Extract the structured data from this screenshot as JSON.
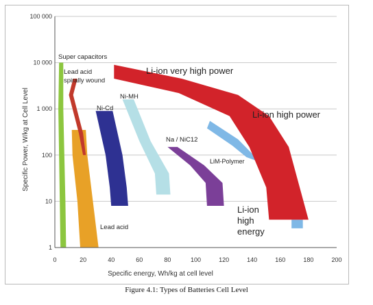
{
  "caption": "Figure 4.1: Types of Batteries Cell Level",
  "chart_data": {
    "type": "area",
    "xlabel": "Specific energy, Wh/kg at cell level",
    "ylabel": "Specific Power, W/kg at Cell Level",
    "xlim": [
      0,
      200
    ],
    "ylim": [
      1,
      100000
    ],
    "yscale": "log",
    "grid": "horizontal",
    "x_ticks": [
      "0",
      "20",
      "40",
      "60",
      "80",
      "100",
      "120",
      "140",
      "160",
      "180",
      "200"
    ],
    "y_ticks": [
      "1",
      "10",
      "100",
      "1 000",
      "10 000",
      "100 000"
    ],
    "series": [
      {
        "name": "Super capacitors",
        "color": "#8cc63f",
        "energy_range": [
          3,
          8
        ],
        "power_range": [
          1,
          10000
        ]
      },
      {
        "name": "Lead acid spirally wound",
        "color": "#c1392b",
        "energy_range": [
          10,
          22
        ],
        "power_range": [
          100,
          4500
        ]
      },
      {
        "name": "Lead acid",
        "color": "#e8a127",
        "energy_range": [
          12,
          31
        ],
        "power_range": [
          1,
          350
        ]
      },
      {
        "name": "Ni-Cd",
        "color": "#2e3192",
        "energy_range": [
          29,
          52
        ],
        "power_range": [
          8,
          900
        ]
      },
      {
        "name": "Ni-MH",
        "color": "#b5dfe6",
        "energy_range": [
          48,
          82
        ],
        "power_range": [
          14,
          1600
        ]
      },
      {
        "name": "Na / NiC12",
        "color": "#7b3f98",
        "energy_range": [
          80,
          120
        ],
        "power_range": [
          8,
          150
        ]
      },
      {
        "name": "LiM-Polymer",
        "color": "#7fb8e6",
        "energy_range": [
          108,
          175
        ],
        "power_range": [
          2.6,
          550
        ]
      },
      {
        "name": "Li-ion very high power",
        "color": "#d2232a",
        "energy_range": [
          42,
          90
        ],
        "power_range": [
          1800,
          9000
        ]
      },
      {
        "name": "Li-ion high power",
        "color": "#d2232a",
        "energy_range": [
          90,
          160
        ],
        "power_range": [
          100,
          2000
        ]
      },
      {
        "name": "Li-ion high energy",
        "color": "#d2232a",
        "energy_range": [
          150,
          180
        ],
        "power_range": [
          4,
          100
        ]
      }
    ]
  }
}
